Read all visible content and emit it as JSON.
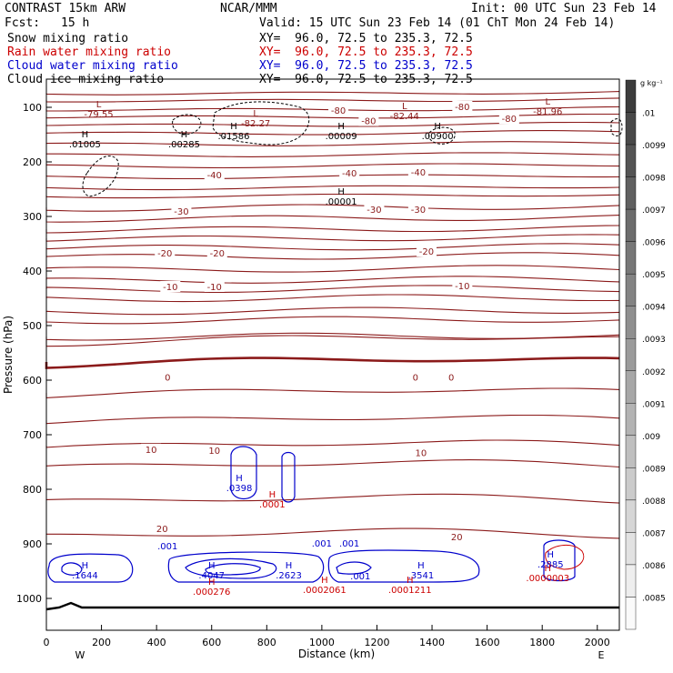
{
  "header": {
    "title": "CONTRAST 15km ARW",
    "org": "NCAR/MMM",
    "init": "Init: 00 UTC Sun 23 Feb 14",
    "fcst_label": "Fcst:",
    "fcst_value": "15 h",
    "valid": "Valid: 15 UTC Sun 23 Feb 14 (01 ChT Mon 24 Feb 14)"
  },
  "fields": [
    {
      "label": "Snow mixing ratio",
      "xy": "XY=  96.0, 72.5 to 235.3, 72.5",
      "color": "#000000"
    },
    {
      "label": "Rain water mixing ratio",
      "xy": "XY=  96.0, 72.5 to 235.3, 72.5",
      "color": "#cc0000"
    },
    {
      "label": "Cloud water mixing ratio",
      "xy": "XY=  96.0, 72.5 to 235.3, 72.5",
      "color": "#0000cc"
    },
    {
      "label": "Cloud ice mixing ratio",
      "xy": "XY=  96.0, 72.5 to 235.3, 72.5",
      "color": "#000000"
    }
  ],
  "colors": {
    "temperature": "#8b1a1a",
    "rain": "#cc0000",
    "cloud_water": "#0000cc",
    "snow": "#000000"
  },
  "chart_data": {
    "type": "contour",
    "xlabel": "Distance (km)",
    "ylabel": "Pressure (hPa)",
    "x_ticks": [
      0,
      200,
      400,
      600,
      800,
      1000,
      1200,
      1400,
      1600,
      1800,
      2000
    ],
    "y_ticks": [
      100,
      200,
      300,
      400,
      500,
      600,
      700,
      800,
      900,
      1000
    ],
    "xlim": [
      0,
      2080
    ],
    "ylim": [
      1050,
      50
    ],
    "direction_left": "W",
    "direction_right": "E",
    "colorbar": {
      "unit": "g kg⁻¹",
      "labels": [
        ".01",
        ".0099",
        ".0098",
        ".0097",
        ".0096",
        ".0095",
        ".0094",
        ".0093",
        ".0092",
        ".0091",
        ".009",
        ".0089",
        ".0088",
        ".0087",
        ".0086",
        ".0085"
      ]
    },
    "temperature_contour_labels": [
      {
        "text": "-80",
        "x": 1060,
        "p": 107
      },
      {
        "text": "-80",
        "x": 1170,
        "p": 126
      },
      {
        "text": "-80",
        "x": 1510,
        "p": 100
      },
      {
        "text": "-80",
        "x": 1680,
        "p": 122
      },
      {
        "text": "-40",
        "x": 610,
        "p": 225
      },
      {
        "text": "-40",
        "x": 1100,
        "p": 222
      },
      {
        "text": "-40",
        "x": 1350,
        "p": 220
      },
      {
        "text": "-30",
        "x": 490,
        "p": 292
      },
      {
        "text": "-30",
        "x": 1190,
        "p": 288
      },
      {
        "text": "-30",
        "x": 1350,
        "p": 288
      },
      {
        "text": "-20",
        "x": 430,
        "p": 368
      },
      {
        "text": "-20",
        "x": 620,
        "p": 368
      },
      {
        "text": "-20",
        "x": 1380,
        "p": 365
      },
      {
        "text": "-10",
        "x": 450,
        "p": 430
      },
      {
        "text": "-10",
        "x": 610,
        "p": 430
      },
      {
        "text": "-10",
        "x": 1510,
        "p": 428
      },
      {
        "text": "0",
        "x": 440,
        "p": 596
      },
      {
        "text": "0",
        "x": 1340,
        "p": 596
      },
      {
        "text": "0",
        "x": 1470,
        "p": 596
      },
      {
        "text": "10",
        "x": 380,
        "p": 728
      },
      {
        "text": "10",
        "x": 610,
        "p": 730
      },
      {
        "text": "10",
        "x": 1360,
        "p": 734
      },
      {
        "text": "20",
        "x": 420,
        "p": 873
      },
      {
        "text": "20",
        "x": 1490,
        "p": 888
      }
    ],
    "extrema": [
      {
        "type": "L",
        "value": "-79.55",
        "x": 190,
        "p": 100,
        "color": "#8b1a1a"
      },
      {
        "type": "L",
        "value": "-82.27",
        "x": 760,
        "p": 117,
        "color": "#8b1a1a"
      },
      {
        "type": "L",
        "value": "-82.44",
        "x": 1300,
        "p": 103,
        "color": "#8b1a1a"
      },
      {
        "type": "L",
        "value": "-81.96",
        "x": 1820,
        "p": 95,
        "color": "#8b1a1a"
      },
      {
        "type": "H",
        "value": ".01005",
        "x": 140,
        "p": 155,
        "color": "#000000"
      },
      {
        "type": "H",
        "value": ".00285",
        "x": 500,
        "p": 155,
        "color": "#000000"
      },
      {
        "type": "H",
        "value": ".01586",
        "x": 680,
        "p": 140,
        "color": "#000000"
      },
      {
        "type": "H",
        "value": ".00009",
        "x": 1070,
        "p": 140,
        "color": "#000000"
      },
      {
        "type": "H",
        "value": ".00900",
        "x": 1420,
        "p": 140,
        "color": "#000000"
      },
      {
        "type": "H",
        "value": ".00001",
        "x": 1070,
        "p": 260,
        "color": "#000000"
      },
      {
        "type": "H",
        "value": ".0398",
        "x": 700,
        "p": 785,
        "color": "#0000cc"
      },
      {
        "type": "H",
        "value": ".0001",
        "x": 820,
        "p": 815,
        "color": "#cc0000"
      },
      {
        "type": "H",
        "value": ".1644",
        "x": 140,
        "p": 945,
        "color": "#0000cc"
      },
      {
        "type": "H",
        "value": ".4047",
        "x": 600,
        "p": 945,
        "color": "#0000cc"
      },
      {
        "type": "H",
        "value": ".000276",
        "x": 600,
        "p": 975,
        "color": "#cc0000"
      },
      {
        "type": "H",
        "value": ".2623",
        "x": 880,
        "p": 945,
        "color": "#0000cc"
      },
      {
        "type": "H",
        "value": ".0002061",
        "x": 1010,
        "p": 972,
        "color": "#cc0000"
      },
      {
        "type": "H",
        "value": ".3541",
        "x": 1360,
        "p": 945,
        "color": "#0000cc"
      },
      {
        "type": "H",
        "value": ".0001211",
        "x": 1320,
        "p": 972,
        "color": "#cc0000"
      },
      {
        "type": "H",
        "value": ".2885",
        "x": 1830,
        "p": 925,
        "color": "#0000cc"
      },
      {
        "type": "H",
        "value": ".0000003",
        "x": 1820,
        "p": 950,
        "color": "#cc0000"
      }
    ],
    "cloud_labels": [
      {
        "text": ".001",
        "x": 440,
        "p": 910
      },
      {
        "text": ".001",
        "x": 1000,
        "p": 905
      },
      {
        "text": ".001",
        "x": 1100,
        "p": 905
      },
      {
        "text": ".001",
        "x": 1140,
        "p": 965
      }
    ]
  }
}
